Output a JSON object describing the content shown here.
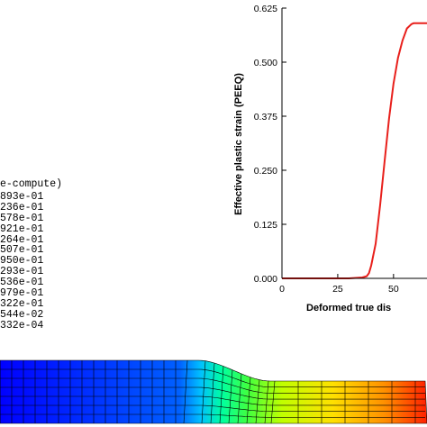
{
  "legend": {
    "title": "e-compute)",
    "values": [
      "893e-01",
      "236e-01",
      "578e-01",
      "921e-01",
      "264e-01",
      "507e-01",
      "950e-01",
      "293e-01",
      "536e-01",
      "979e-01",
      "322e-01",
      "544e-02",
      "332e-04"
    ]
  },
  "mesh": {
    "colormap": [
      "#0000ff",
      "#0060ff",
      "#00c0ff",
      "#00ffa0",
      "#40ff40",
      "#c0ff00",
      "#ffe000",
      "#ff9000",
      "#ff2000"
    ]
  },
  "chart_data": {
    "type": "line",
    "xlabel": "Deformed true dis",
    "ylabel": "Effective plastic strain (PEEQ)",
    "xlim": [
      0,
      65
    ],
    "ylim": [
      0,
      0.625
    ],
    "xticks": [
      "0",
      "25",
      "50"
    ],
    "yticks": [
      "0.000",
      "0.125",
      "0.250",
      "0.375",
      "0.500",
      "0.625"
    ],
    "series": [
      {
        "color": "#e8201c",
        "x": [
          0,
          30,
          36,
          38,
          39,
          40,
          42,
          44,
          46,
          48,
          50,
          52,
          54,
          56,
          58,
          59,
          62,
          65
        ],
        "y": [
          0.0,
          0.0,
          0.002,
          0.005,
          0.012,
          0.03,
          0.08,
          0.17,
          0.27,
          0.37,
          0.45,
          0.51,
          0.55,
          0.578,
          0.588,
          0.59,
          0.59,
          0.59
        ]
      }
    ]
  }
}
